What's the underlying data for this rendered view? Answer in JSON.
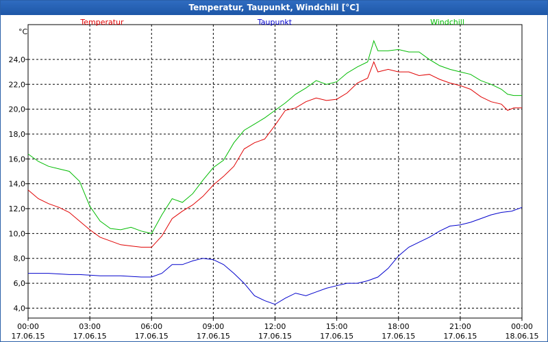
{
  "window": {
    "title": "Temperatur, Taupunkt, Windchill [°C]"
  },
  "chart_data": {
    "type": "line",
    "title": "Temperatur, Taupunkt, Windchill [°C]",
    "ylabel": "°C",
    "ylim": [
      3.2,
      26.8
    ],
    "yticks": [
      "4,0",
      "6,0",
      "8,0",
      "10,0",
      "12,0",
      "14,0",
      "16,0",
      "18,0",
      "20,0",
      "22,0",
      "24,0"
    ],
    "xlim": [
      0,
      24
    ],
    "xticks": [
      {
        "time": "00:00",
        "date": "17.06.15"
      },
      {
        "time": "03:00",
        "date": "17.06.15"
      },
      {
        "time": "06:00",
        "date": "17.06.15"
      },
      {
        "time": "09:00",
        "date": "17.06.15"
      },
      {
        "time": "12:00",
        "date": "17.06.15"
      },
      {
        "time": "15:00",
        "date": "17.06.15"
      },
      {
        "time": "18:00",
        "date": "17.06.15"
      },
      {
        "time": "21:00",
        "date": "17.06.15"
      },
      {
        "time": "00:00",
        "date": "18.06.15"
      }
    ],
    "grid": true,
    "legend_position": "top",
    "series": [
      {
        "name": "Temperatur",
        "color": "#e00000",
        "x": [
          0,
          0.5,
          1,
          1.5,
          2,
          2.5,
          3,
          3.5,
          4,
          4.5,
          5,
          5.5,
          6,
          6.5,
          7,
          7.5,
          8,
          8.5,
          9,
          9.5,
          10,
          10.5,
          11,
          11.5,
          12,
          12.5,
          13,
          13.5,
          14,
          14.5,
          15,
          15.5,
          16,
          16.5,
          16.8,
          17,
          17.5,
          18,
          18.5,
          19,
          19.5,
          20,
          20.5,
          21,
          21.5,
          22,
          22.5,
          23,
          23.3,
          23.6,
          24
        ],
        "y": [
          13.5,
          12.8,
          12.4,
          12.1,
          11.7,
          11.0,
          10.3,
          9.7,
          9.4,
          9.1,
          9.0,
          8.9,
          8.9,
          9.8,
          11.2,
          11.8,
          12.3,
          13.0,
          13.9,
          14.6,
          15.4,
          16.8,
          17.3,
          17.6,
          18.7,
          19.9,
          20.1,
          20.6,
          20.9,
          20.7,
          20.8,
          21.3,
          22.1,
          22.5,
          23.8,
          23.0,
          23.2,
          23.0,
          23.0,
          22.7,
          22.8,
          22.4,
          22.1,
          21.9,
          21.6,
          21.0,
          20.6,
          20.4,
          19.9,
          20.1,
          20.1
        ]
      },
      {
        "name": "Taupunkt",
        "color": "#0000cc",
        "x": [
          0,
          0.5,
          1,
          1.5,
          2,
          2.5,
          3,
          3.5,
          4,
          4.5,
          5,
          5.5,
          6,
          6.5,
          7,
          7.5,
          8,
          8.5,
          9,
          9.5,
          10,
          10.5,
          11,
          11.5,
          12,
          12.5,
          13,
          13.5,
          14,
          14.5,
          15,
          15.5,
          16,
          16.5,
          17,
          17.5,
          18,
          18.5,
          19,
          19.5,
          20,
          20.5,
          21,
          21.5,
          22,
          22.5,
          23,
          23.5,
          24
        ],
        "y": [
          6.8,
          6.8,
          6.8,
          6.75,
          6.7,
          6.7,
          6.65,
          6.6,
          6.6,
          6.6,
          6.55,
          6.5,
          6.5,
          6.8,
          7.5,
          7.5,
          7.8,
          8.0,
          7.9,
          7.5,
          6.8,
          6.0,
          5.0,
          4.6,
          4.3,
          4.8,
          5.2,
          5.0,
          5.3,
          5.6,
          5.8,
          6.0,
          6.0,
          6.2,
          6.5,
          7.2,
          8.2,
          8.9,
          9.3,
          9.7,
          10.2,
          10.6,
          10.7,
          10.9,
          11.2,
          11.5,
          11.7,
          11.8,
          12.1
        ]
      },
      {
        "name": "Windchill",
        "color": "#00bb00",
        "x": [
          0,
          0.5,
          1,
          1.5,
          2,
          2.5,
          3,
          3.5,
          4,
          4.5,
          5,
          5.5,
          6,
          6.5,
          7,
          7.5,
          8,
          8.5,
          9,
          9.5,
          10,
          10.5,
          11,
          11.5,
          12,
          12.5,
          13,
          13.5,
          14,
          14.5,
          15,
          15.5,
          16,
          16.5,
          16.8,
          17,
          17.5,
          18,
          18.5,
          19,
          19.5,
          20,
          20.5,
          21,
          21.5,
          22,
          22.5,
          23,
          23.3,
          23.6,
          24
        ],
        "y": [
          16.4,
          15.8,
          15.4,
          15.2,
          15.0,
          14.2,
          12.2,
          11.0,
          10.4,
          10.3,
          10.5,
          10.2,
          10.0,
          11.5,
          12.8,
          12.5,
          13.2,
          14.3,
          15.3,
          15.9,
          17.3,
          18.3,
          18.8,
          19.3,
          19.9,
          20.5,
          21.2,
          21.7,
          22.3,
          22.0,
          22.2,
          22.9,
          23.4,
          23.8,
          25.5,
          24.7,
          24.7,
          24.8,
          24.6,
          24.6,
          24.0,
          23.5,
          23.2,
          23.0,
          22.8,
          22.3,
          22.0,
          21.6,
          21.2,
          21.1,
          21.1
        ]
      }
    ]
  }
}
